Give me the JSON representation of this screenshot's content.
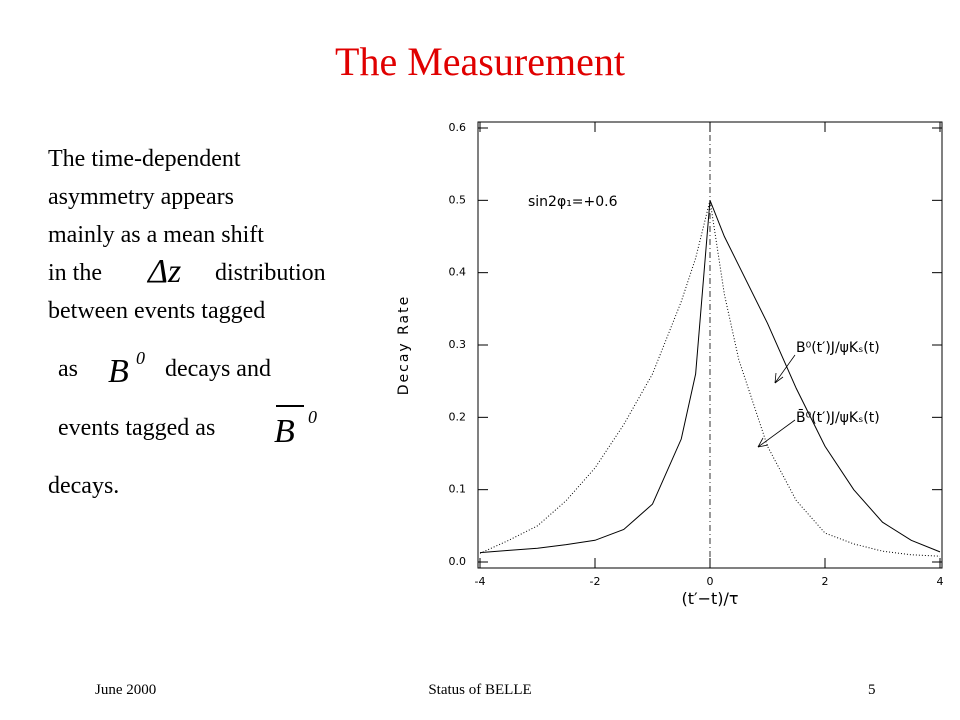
{
  "title": "The Measurement",
  "body": [
    "The time-dependent",
    "asymmetry appears",
    "mainly as a mean shift",
    "in the",
    "distribution",
    "between events tagged",
    "as",
    "decays and",
    "events tagged as",
    "decays."
  ],
  "symbols": {
    "delta_z": "Δz",
    "b0": {
      "base": "B",
      "sup": "0"
    },
    "b0bar": {
      "base": "B",
      "sup": "0"
    }
  },
  "footer": {
    "date": "June 2000",
    "center": "Status of BELLE",
    "page": "5"
  },
  "chart_data": {
    "type": "line",
    "ylabel": "Decay Rate",
    "xlabel": "(t′−t)/τ",
    "annotation": "sin2φ₁=+0.6",
    "x": [
      -4,
      -3.5,
      -3,
      -2.5,
      -2,
      -1.5,
      -1,
      -0.5,
      -0.25,
      0,
      0.25,
      0.5,
      1,
      1.5,
      2,
      2.5,
      3,
      3.5,
      4
    ],
    "series": [
      {
        "name": "B⁰(t′)J/ψKₛ(t)",
        "color": "#000000",
        "style": "solid",
        "values": [
          0.013,
          0.016,
          0.019,
          0.024,
          0.03,
          0.045,
          0.08,
          0.17,
          0.26,
          0.5,
          0.45,
          0.41,
          0.33,
          0.24,
          0.16,
          0.1,
          0.055,
          0.03,
          0.014
        ]
      },
      {
        "name": "B̄⁰(t′)J/ψKₛ(t)",
        "color": "#000000",
        "style": "dotted",
        "values": [
          0.012,
          0.03,
          0.05,
          0.085,
          0.13,
          0.19,
          0.26,
          0.36,
          0.42,
          0.5,
          0.37,
          0.28,
          0.16,
          0.085,
          0.04,
          0.025,
          0.015,
          0.01,
          0.008
        ]
      }
    ],
    "xlim": [
      -4,
      4
    ],
    "ylim": [
      0,
      0.6
    ],
    "xticks": [
      -4,
      -2,
      0,
      2,
      4
    ],
    "yticks": [
      {
        "value": 0,
        "label": "0.0"
      },
      0.1,
      0.2,
      0.3,
      0.4,
      0.5,
      0.6
    ]
  }
}
